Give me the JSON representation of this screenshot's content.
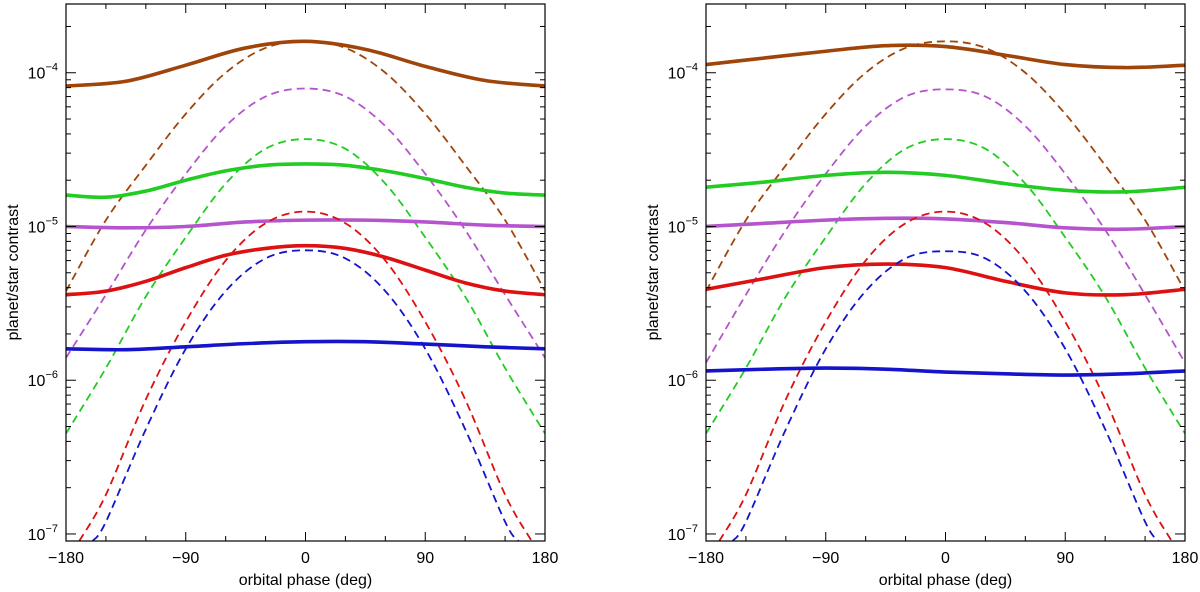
{
  "chart_data": [
    {
      "type": "line",
      "xlabel": "orbital phase (deg)",
      "ylabel": "planet/star contrast",
      "xlim": [
        -180,
        180
      ],
      "ylim": [
        9e-08,
        0.00028
      ],
      "yscale": "log",
      "xticks": [
        -180,
        -90,
        0,
        90,
        180
      ],
      "xtick_labels": [
        "−180",
        "−90",
        "0",
        "90",
        "180"
      ],
      "yticks": [
        1e-07,
        1e-06,
        1e-05,
        0.0001
      ],
      "ytick_labels": [
        {
          "base": "10",
          "exp": "−7"
        },
        {
          "base": "10",
          "exp": "−6"
        },
        {
          "base": "10",
          "exp": "−5"
        },
        {
          "base": "10",
          "exp": "−4"
        }
      ],
      "series": [
        {
          "color": "#a0450a",
          "style": "solid",
          "x": [
            -180,
            -135,
            -90,
            -45,
            0,
            45,
            90,
            135,
            180
          ],
          "y": [
            8.2e-05,
            8.8e-05,
            0.000112,
            0.000145,
            0.00016,
            0.000142,
            0.00011,
            8.9e-05,
            8.2e-05
          ]
        },
        {
          "color": "#a0450a",
          "style": "dashed",
          "x": [
            -180,
            -150,
            -120,
            -90,
            -60,
            -30,
            0,
            30,
            60,
            90,
            120,
            150,
            180
          ],
          "y": [
            3.8e-06,
            1.1e-05,
            2.5e-05,
            5.4e-05,
            0.0001,
            0.000145,
            0.00016,
            0.000145,
            0.0001,
            5.4e-05,
            2.5e-05,
            1.1e-05,
            3.8e-06
          ]
        },
        {
          "color": "#b554cc",
          "style": "dashed",
          "x": [
            -180,
            -150,
            -120,
            -90,
            -60,
            -30,
            0,
            30,
            60,
            90,
            120,
            150,
            180
          ],
          "y": [
            1.4e-06,
            3.6e-06,
            9.5e-06,
            2.2e-05,
            4.5e-05,
            7e-05,
            7.9e-05,
            7e-05,
            4.5e-05,
            2.2e-05,
            9.5e-06,
            3.6e-06,
            1.4e-06
          ]
        },
        {
          "color": "#22cc22",
          "style": "dashed",
          "x": [
            -180,
            -150,
            -120,
            -90,
            -60,
            -30,
            0,
            30,
            60,
            90,
            120,
            150,
            180
          ],
          "y": [
            4.5e-07,
            1.2e-06,
            3.5e-06,
            8.5e-06,
            1.9e-05,
            3.2e-05,
            3.7e-05,
            3.2e-05,
            1.9e-05,
            8.5e-06,
            3.5e-06,
            1.2e-06,
            4.5e-07
          ]
        },
        {
          "color": "#22cc22",
          "style": "solid",
          "x": [
            -180,
            -150,
            -120,
            -90,
            -60,
            -30,
            0,
            30,
            60,
            90,
            120,
            150,
            180
          ],
          "y": [
            1.6e-05,
            1.55e-05,
            1.7e-05,
            2e-05,
            2.3e-05,
            2.5e-05,
            2.55e-05,
            2.5e-05,
            2.3e-05,
            2.05e-05,
            1.8e-05,
            1.65e-05,
            1.6e-05
          ]
        },
        {
          "color": "#b554cc",
          "style": "solid",
          "x": [
            -180,
            -135,
            -90,
            -45,
            0,
            45,
            90,
            135,
            180
          ],
          "y": [
            1e-05,
            9.8e-06,
            1e-05,
            1.07e-05,
            1.1e-05,
            1.1e-05,
            1.07e-05,
            1.02e-05,
            1e-05
          ]
        },
        {
          "color": "#dd1111",
          "style": "dashed",
          "x": [
            -170,
            -150,
            -120,
            -90,
            -60,
            -30,
            0,
            30,
            60,
            90,
            120,
            150,
            170
          ],
          "y": [
            9e-08,
            1.8e-07,
            7.5e-07,
            2.4e-06,
            6e-06,
            1.05e-05,
            1.25e-05,
            1.05e-05,
            6e-06,
            2.4e-06,
            7.5e-07,
            1.8e-07,
            9e-08
          ]
        },
        {
          "color": "#dd1111",
          "style": "solid",
          "x": [
            -180,
            -150,
            -120,
            -90,
            -60,
            -30,
            0,
            30,
            60,
            90,
            120,
            150,
            180
          ],
          "y": [
            3.6e-06,
            3.8e-06,
            4.4e-06,
            5.4e-06,
            6.5e-06,
            7.2e-06,
            7.5e-06,
            7.2e-06,
            6.3e-06,
            5.2e-06,
            4.3e-06,
            3.8e-06,
            3.6e-06
          ]
        },
        {
          "color": "#1414cc",
          "style": "dashed",
          "x": [
            -160,
            -150,
            -120,
            -90,
            -60,
            -30,
            0,
            30,
            60,
            90,
            120,
            150,
            160
          ],
          "y": [
            9e-08,
            1.2e-07,
            4.8e-07,
            1.6e-06,
            3.8e-06,
            6.2e-06,
            7e-06,
            6.2e-06,
            3.8e-06,
            1.6e-06,
            4.8e-07,
            1.2e-07,
            9e-08
          ]
        },
        {
          "color": "#1414cc",
          "style": "solid",
          "x": [
            -180,
            -135,
            -90,
            -45,
            0,
            45,
            90,
            135,
            180
          ],
          "y": [
            1.6e-06,
            1.58e-06,
            1.65e-06,
            1.73e-06,
            1.78e-06,
            1.78e-06,
            1.72e-06,
            1.65e-06,
            1.6e-06
          ]
        }
      ]
    },
    {
      "type": "line",
      "xlabel": "orbital phase (deg)",
      "ylabel": "planet/star contrast",
      "xlim": [
        -180,
        180
      ],
      "ylim": [
        9e-08,
        0.00028
      ],
      "yscale": "log",
      "xticks": [
        -180,
        -90,
        0,
        90,
        180
      ],
      "xtick_labels": [
        "−180",
        "−90",
        "0",
        "90",
        "180"
      ],
      "yticks": [
        1e-07,
        1e-06,
        1e-05,
        0.0001
      ],
      "ytick_labels": [
        {
          "base": "10",
          "exp": "−7"
        },
        {
          "base": "10",
          "exp": "−6"
        },
        {
          "base": "10",
          "exp": "−5"
        },
        {
          "base": "10",
          "exp": "−4"
        }
      ],
      "series": [
        {
          "color": "#a0450a",
          "style": "solid",
          "x": [
            -180,
            -135,
            -90,
            -45,
            0,
            45,
            90,
            135,
            180
          ],
          "y": [
            0.000113,
            0.000125,
            0.000138,
            0.00015,
            0.000148,
            0.00013,
            0.000113,
            0.000108,
            0.000112
          ]
        },
        {
          "color": "#a0450a",
          "style": "dashed",
          "x": [
            -180,
            -150,
            -120,
            -90,
            -60,
            -30,
            0,
            30,
            60,
            90,
            120,
            150,
            180
          ],
          "y": [
            3.8e-06,
            1.1e-05,
            2.5e-05,
            5.4e-05,
            0.0001,
            0.000145,
            0.00016,
            0.000145,
            0.0001,
            5.4e-05,
            2.5e-05,
            1.1e-05,
            3.8e-06
          ]
        },
        {
          "color": "#b554cc",
          "style": "dashed",
          "x": [
            -180,
            -150,
            -120,
            -90,
            -60,
            -30,
            0,
            30,
            60,
            90,
            120,
            150,
            180
          ],
          "y": [
            1.3e-06,
            3.6e-06,
            9.5e-06,
            2.2e-05,
            4.5e-05,
            7e-05,
            7.8e-05,
            7e-05,
            4.5e-05,
            2.2e-05,
            9.5e-06,
            3.6e-06,
            1.3e-06
          ]
        },
        {
          "color": "#22cc22",
          "style": "dashed",
          "x": [
            -180,
            -150,
            -120,
            -90,
            -60,
            -30,
            0,
            30,
            60,
            90,
            120,
            150,
            180
          ],
          "y": [
            4.5e-07,
            1.2e-06,
            3.5e-06,
            8.5e-06,
            1.9e-05,
            3.2e-05,
            3.7e-05,
            3.2e-05,
            1.9e-05,
            8.5e-06,
            3.5e-06,
            1.2e-06,
            4.5e-07
          ]
        },
        {
          "color": "#22cc22",
          "style": "solid",
          "x": [
            -180,
            -135,
            -90,
            -45,
            0,
            45,
            90,
            135,
            180
          ],
          "y": [
            1.8e-05,
            1.95e-05,
            2.15e-05,
            2.25e-05,
            2.15e-05,
            1.9e-05,
            1.72e-05,
            1.68e-05,
            1.8e-05
          ]
        },
        {
          "color": "#b554cc",
          "style": "solid",
          "x": [
            -180,
            -135,
            -90,
            -45,
            0,
            45,
            90,
            135,
            180
          ],
          "y": [
            1e-05,
            1.05e-05,
            1.1e-05,
            1.13e-05,
            1.12e-05,
            1.06e-05,
            9.8e-06,
            9.6e-06,
            1e-05
          ]
        },
        {
          "color": "#dd1111",
          "style": "dashed",
          "x": [
            -170,
            -150,
            -120,
            -90,
            -60,
            -30,
            0,
            30,
            60,
            90,
            120,
            150,
            170
          ],
          "y": [
            9e-08,
            1.8e-07,
            7.5e-07,
            2.4e-06,
            6e-06,
            1.05e-05,
            1.25e-05,
            1.05e-05,
            6e-06,
            2.4e-06,
            7.5e-07,
            1.8e-07,
            9e-08
          ]
        },
        {
          "color": "#dd1111",
          "style": "solid",
          "x": [
            -180,
            -135,
            -90,
            -45,
            0,
            45,
            90,
            135,
            180
          ],
          "y": [
            3.9e-06,
            4.6e-06,
            5.4e-06,
            5.7e-06,
            5.4e-06,
            4.4e-06,
            3.7e-06,
            3.6e-06,
            3.9e-06
          ]
        },
        {
          "color": "#1414cc",
          "style": "dashed",
          "x": [
            -160,
            -150,
            -120,
            -90,
            -60,
            -30,
            0,
            30,
            60,
            90,
            120,
            150,
            160
          ],
          "y": [
            9e-08,
            1.2e-07,
            4.8e-07,
            1.6e-06,
            3.8e-06,
            6.2e-06,
            6.9e-06,
            6.2e-06,
            3.8e-06,
            1.6e-06,
            4.8e-07,
            1.2e-07,
            9e-08
          ]
        },
        {
          "color": "#1414cc",
          "style": "solid",
          "x": [
            -180,
            -135,
            -90,
            -45,
            0,
            45,
            90,
            135,
            180
          ],
          "y": [
            1.15e-06,
            1.18e-06,
            1.2e-06,
            1.18e-06,
            1.13e-06,
            1.1e-06,
            1.08e-06,
            1.1e-06,
            1.15e-06
          ]
        }
      ]
    }
  ]
}
